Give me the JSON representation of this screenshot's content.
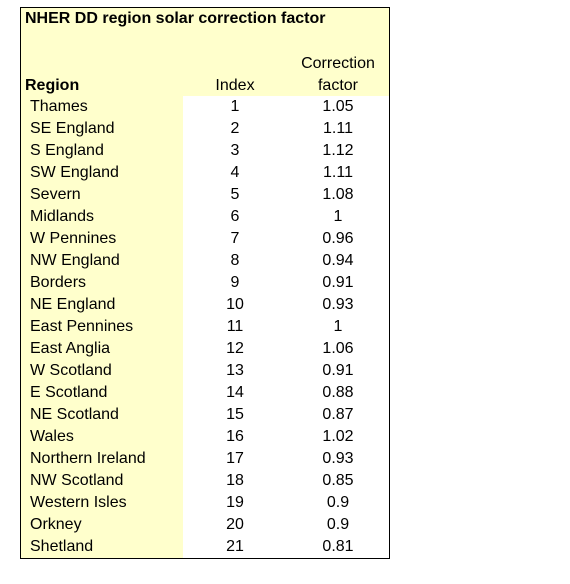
{
  "title": "NHER DD region solar correction factor",
  "headers": {
    "region": "Region",
    "index": "Index",
    "factor_line1": "Correction",
    "factor_line2": "factor"
  },
  "rows": [
    {
      "region": "Thames",
      "index": "1",
      "factor": "1.05"
    },
    {
      "region": "SE England",
      "index": "2",
      "factor": "1.11"
    },
    {
      "region": "S England",
      "index": "3",
      "factor": "1.12"
    },
    {
      "region": "SW England",
      "index": "4",
      "factor": "1.11"
    },
    {
      "region": "Severn",
      "index": "5",
      "factor": "1.08"
    },
    {
      "region": "Midlands",
      "index": "6",
      "factor": "1"
    },
    {
      "region": "W Pennines",
      "index": "7",
      "factor": "0.96"
    },
    {
      "region": "NW England",
      "index": "8",
      "factor": "0.94"
    },
    {
      "region": "Borders",
      "index": "9",
      "factor": "0.91"
    },
    {
      "region": "NE England",
      "index": "10",
      "factor": "0.93"
    },
    {
      "region": "East Pennines",
      "index": "11",
      "factor": "1"
    },
    {
      "region": "East Anglia",
      "index": "12",
      "factor": "1.06"
    },
    {
      "region": "W Scotland",
      "index": "13",
      "factor": "0.91"
    },
    {
      "region": "E Scotland",
      "index": "14",
      "factor": "0.88"
    },
    {
      "region": "NE Scotland",
      "index": "15",
      "factor": "0.87"
    },
    {
      "region": "Wales",
      "index": "16",
      "factor": "1.02"
    },
    {
      "region": "Northern Ireland",
      "index": "17",
      "factor": "0.93"
    },
    {
      "region": "NW Scotland",
      "index": "18",
      "factor": "0.85"
    },
    {
      "region": "Western Isles",
      "index": "19",
      "factor": "0.9"
    },
    {
      "region": "Orkney",
      "index": "20",
      "factor": "0.9"
    },
    {
      "region": "Shetland",
      "index": "21",
      "factor": "0.81"
    }
  ],
  "colors": {
    "highlight": "#ffffcc",
    "border": "#000000",
    "background": "#ffffff"
  }
}
